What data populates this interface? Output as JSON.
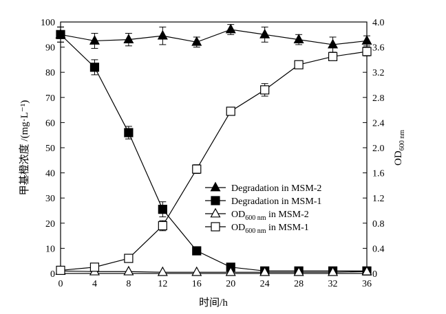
{
  "chart_data": {
    "type": "line",
    "xlabel": "时间/h",
    "ylabel_left": "甲基橙浓度 /(mg·L⁻¹)",
    "ylabel_right_main": "OD",
    "ylabel_right_sub": "600 nm",
    "x": [
      0,
      4,
      8,
      12,
      16,
      20,
      24,
      28,
      32,
      36
    ],
    "xlim": [
      0,
      36
    ],
    "xticks": [
      "0",
      "4",
      "8",
      "12",
      "16",
      "20",
      "24",
      "28",
      "32",
      "36"
    ],
    "ylim_left": [
      0,
      100
    ],
    "yticks_left": [
      "0",
      "10",
      "20",
      "30",
      "40",
      "50",
      "60",
      "70",
      "80",
      "90",
      "100"
    ],
    "ylim_right": [
      0,
      4.0
    ],
    "yticks_right": [
      "0",
      "0.4",
      "0.8",
      "1.2",
      "1.6",
      "2.0",
      "2.4",
      "2.8",
      "3.2",
      "3.6",
      "4.0"
    ],
    "legend_position": "center-right",
    "series": [
      {
        "legend_main": "Degradation in MSM-2",
        "legend_sub": "",
        "legend_suffix": "",
        "marker": "triangle",
        "filled": true,
        "axis": "left",
        "values": [
          95,
          92.5,
          93,
          94.5,
          92,
          97,
          95,
          93,
          91,
          92.5
        ],
        "errors": [
          3,
          3,
          2.5,
          3.5,
          2,
          2,
          3,
          2,
          3,
          2
        ]
      },
      {
        "legend_main": "Degradation in MSM-1",
        "legend_sub": "",
        "legend_suffix": "",
        "marker": "square",
        "filled": true,
        "axis": "left",
        "values": [
          95,
          82,
          56,
          25.5,
          9,
          2.5,
          1,
          1,
          1,
          1
        ],
        "errors": [
          3,
          3,
          2.5,
          3,
          0.5,
          0.5,
          0.3,
          0.3,
          0.3,
          0.3
        ]
      },
      {
        "legend_main": "OD",
        "legend_sub": "600 nm",
        "legend_suffix": " in MSM-2",
        "marker": "triangle",
        "filled": false,
        "axis": "right",
        "values": [
          0.04,
          0.03,
          0.03,
          0.02,
          0.02,
          0.02,
          0.02,
          0.02,
          0.02,
          0.03
        ],
        "errors": [
          0,
          0,
          0,
          0,
          0,
          0,
          0,
          0,
          0,
          0
        ]
      },
      {
        "legend_main": "OD",
        "legend_sub": "600 nm",
        "legend_suffix": " in MSM-1",
        "marker": "square",
        "filled": false,
        "axis": "right",
        "values": [
          0.05,
          0.1,
          0.24,
          0.76,
          1.66,
          2.58,
          2.92,
          3.32,
          3.45,
          3.53
        ],
        "errors": [
          0,
          0,
          0,
          0.08,
          0.07,
          0.04,
          0.1,
          0.06,
          0.06,
          0.07
        ]
      }
    ]
  }
}
